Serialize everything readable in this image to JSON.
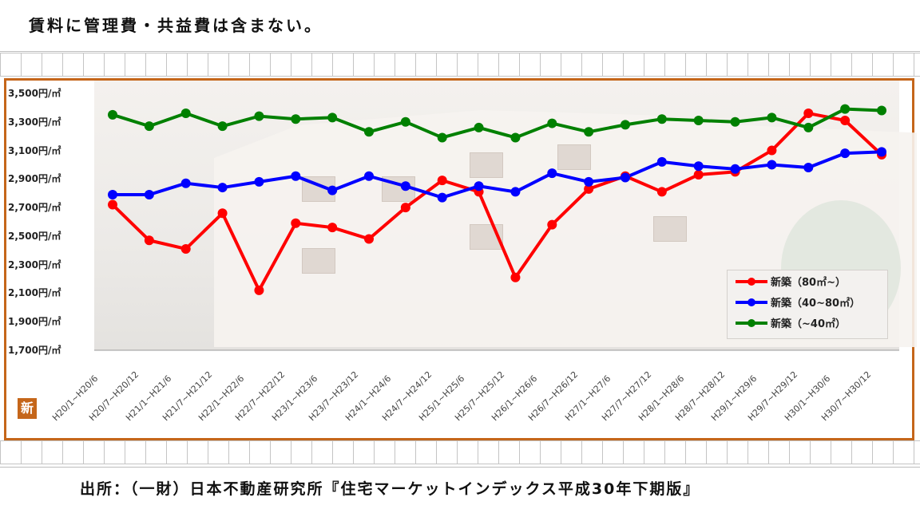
{
  "page": {
    "note": "賃料に管理費・共益費は含まない。",
    "source": "出所：（一財）日本不動産研究所『住宅マーケットインデックス平成30年下期版』",
    "badge": "新"
  },
  "chart_data": {
    "type": "line",
    "title": "",
    "xlabel": "",
    "ylabel": "",
    "ylim": [
      1700,
      3500
    ],
    "y_ticks": [
      1700,
      1900,
      2100,
      2300,
      2500,
      2700,
      2900,
      3100,
      3300,
      3500
    ],
    "y_tick_labels": [
      "1,700円/㎡",
      "1,900円/㎡",
      "2,100円/㎡",
      "2,300円/㎡",
      "2,500円/㎡",
      "2,700円/㎡",
      "2,900円/㎡",
      "3,100円/㎡",
      "3,300円/㎡",
      "3,500円/㎡"
    ],
    "categories": [
      "H20/1~H20/6",
      "H20/7~H20/12",
      "H21/1~H21/6",
      "H21/7~H21/12",
      "H22/1~H22/6",
      "H22/7~H22/12",
      "H23/1~H23/6",
      "H23/7~H23/12",
      "H24/1~H24/6",
      "H24/7~H24/12",
      "H25/1~H25/6",
      "H25/7~H25/12",
      "H26/1~H26/6",
      "H26/7~H26/12",
      "H27/1~H27/6",
      "H27/7~H27/12",
      "H28/1~H28/6",
      "H28/7~H28/12",
      "H29/1~H29/6",
      "H29/7~H29/12",
      "H30/1~H30/6",
      "H30/7~H30/12"
    ],
    "series": [
      {
        "name": "新築（80㎡~）",
        "color": "#ff0000",
        "values": [
          2720,
          2470,
          2410,
          2660,
          2120,
          2590,
          2560,
          2480,
          2700,
          2890,
          2810,
          2210,
          2580,
          2830,
          2920,
          2810,
          2930,
          2950,
          3100,
          3360,
          3310,
          3070
        ]
      },
      {
        "name": "新築（40~80㎡）",
        "color": "#0000ff",
        "values": [
          2790,
          2790,
          2870,
          2840,
          2880,
          2920,
          2820,
          2920,
          2850,
          2770,
          2850,
          2810,
          2940,
          2880,
          2910,
          3020,
          2990,
          2970,
          3000,
          2980,
          3080,
          3090
        ]
      },
      {
        "name": "新築（~40㎡）",
        "color": "#008000",
        "values": [
          3350,
          3270,
          3360,
          3270,
          3340,
          3320,
          3330,
          3230,
          3300,
          3190,
          3260,
          3190,
          3290,
          3230,
          3280,
          3320,
          3310,
          3300,
          3330,
          3260,
          3390,
          3380
        ]
      }
    ],
    "grid": false,
    "legend_position": "right"
  }
}
